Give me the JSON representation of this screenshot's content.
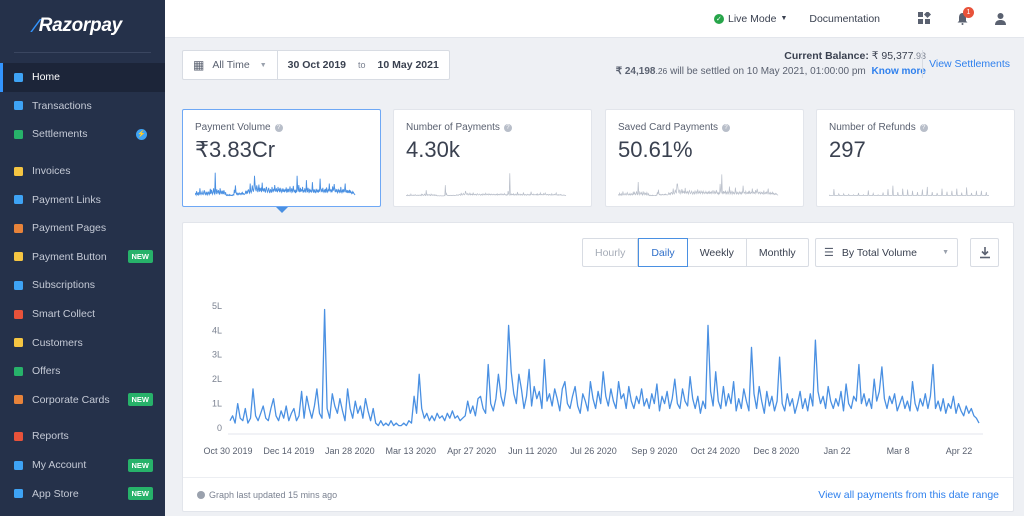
{
  "brand": {
    "name": "Razorpay"
  },
  "sidebar": {
    "items": [
      {
        "label": "Home",
        "icon": "home-icon",
        "color": "#3ea3f5",
        "active": true
      },
      {
        "label": "Transactions",
        "icon": "transactions-icon",
        "color": "#3ea3f5"
      },
      {
        "label": "Settlements",
        "icon": "settlements-icon",
        "color": "#27b26a",
        "badge": "bolt"
      },
      {
        "label": "Invoices",
        "icon": "invoices-icon",
        "color": "#f5c542"
      },
      {
        "label": "Payment Links",
        "icon": "link-icon",
        "color": "#3ea3f5"
      },
      {
        "label": "Payment Pages",
        "icon": "pages-icon",
        "color": "#e8833a"
      },
      {
        "label": "Payment Button",
        "icon": "button-icon",
        "color": "#f5c542",
        "badge": "NEW"
      },
      {
        "label": "Subscriptions",
        "icon": "subscriptions-icon",
        "color": "#3ea3f5"
      },
      {
        "label": "Smart Collect",
        "icon": "bank-icon",
        "color": "#e8523a"
      },
      {
        "label": "Customers",
        "icon": "customers-icon",
        "color": "#f5c542"
      },
      {
        "label": "Offers",
        "icon": "tag-icon",
        "color": "#27b26a"
      },
      {
        "label": "Corporate Cards",
        "icon": "card-icon",
        "color": "#e8833a",
        "badge": "NEW"
      },
      {
        "label": "Reports",
        "icon": "reports-icon",
        "color": "#e8523a"
      },
      {
        "label": "My Account",
        "icon": "account-icon",
        "color": "#3ea3f5",
        "badge": "NEW"
      },
      {
        "label": "App Store",
        "icon": "grid-icon",
        "color": "#3ea3f5",
        "badge": "NEW"
      }
    ]
  },
  "topbar": {
    "mode": "Live Mode",
    "documentation": "Documentation",
    "notif_count": "1"
  },
  "date_filter": {
    "range": "All Time",
    "from": "30 Oct 2019",
    "to_word": "to",
    "to": "10 May 2021"
  },
  "balance": {
    "label": "Current Balance:",
    "amount": "₹ 95,377",
    "amount_decimal": ".93",
    "settle_amount": "₹ 24,198",
    "settle_decimal": ".26",
    "settle_text": "will be settled on 10 May 2021, 01:00:00 pm",
    "know_more": "Know more",
    "view_settlements": "View Settlements"
  },
  "cards": [
    {
      "label": "Payment Volume",
      "value": "₹3.83Cr"
    },
    {
      "label": "Number of Payments",
      "value": "4.30k"
    },
    {
      "label": "Saved Card Payments",
      "value": "50.61%"
    },
    {
      "label": "Number of Refunds",
      "value": "297"
    }
  ],
  "controls": {
    "granularity": [
      "Hourly",
      "Daily",
      "Weekly",
      "Monthly"
    ],
    "selected": "Daily",
    "sort": "By Total Volume"
  },
  "footer": {
    "updated": "Graph last updated 15 mins ago",
    "view_all": "View all payments from this date range"
  },
  "chart_data": {
    "type": "line",
    "ylabel": "",
    "yticks": [
      "0",
      "1L",
      "2L",
      "3L",
      "4L",
      "5L"
    ],
    "ylim": [
      0,
      5.2
    ],
    "xticks": [
      "Oct 30 2019",
      "Dec 14 2019",
      "Jan 28 2020",
      "Mar 13 2020",
      "Apr 27 2020",
      "Jun 11 2020",
      "Jul 26 2020",
      "Sep 9 2020",
      "Oct 24 2020",
      "Dec 8 2020",
      "Jan 22",
      "Mar 8",
      "Apr 22"
    ],
    "series": [
      {
        "color": "#4a90e2",
        "values": [
          0.3,
          0.5,
          0.2,
          1.0,
          0.4,
          0.3,
          0.8,
          0.2,
          0.4,
          1.6,
          0.5,
          0.3,
          0.6,
          0.9,
          0.4,
          0.3,
          0.8,
          1.2,
          0.5,
          0.3,
          0.7,
          0.4,
          0.9,
          0.3,
          0.6,
          0.8,
          0.3,
          0.5,
          1.5,
          0.4,
          1.3,
          0.8,
          0.4,
          0.9,
          1.6,
          0.6,
          0.4,
          4.85,
          0.8,
          0.4,
          1.4,
          0.9,
          0.6,
          1.2,
          0.7,
          0.3,
          1.6,
          0.8,
          0.4,
          1.1,
          0.6,
          0.9,
          0.4,
          1.2,
          0.7,
          0.3,
          0.8,
          0.2,
          0.1,
          0.3,
          0.1,
          0.2,
          0.1,
          0.3,
          0.1,
          0.2,
          0.1,
          0.1,
          0.2,
          0.1,
          0.3,
          0.2,
          1.3,
          0.6,
          2.2,
          0.8,
          0.4,
          0.6,
          0.3,
          0.5,
          0.3,
          0.6,
          0.4,
          0.5,
          0.3,
          0.6,
          0.4,
          0.7,
          0.4,
          0.5,
          0.3,
          0.4,
          0.5,
          1.1,
          0.6,
          0.9,
          0.5,
          1.2,
          1.3,
          0.8,
          0.6,
          2.6,
          1.0,
          0.7,
          1.2,
          2.2,
          1.3,
          0.9,
          1.6,
          4.2,
          2.3,
          1.4,
          1.0,
          2.2,
          1.6,
          0.8,
          1.3,
          2.4,
          0.9,
          1.7,
          1.2,
          1.5,
          0.8,
          2.8,
          1.1,
          1.4,
          0.9,
          1.6,
          1.2,
          0.7,
          1.6,
          1.9,
          1.0,
          0.8,
          1.3,
          1.7,
          0.9,
          0.6,
          1.4,
          1.1,
          0.7,
          1.9,
          1.2,
          0.8,
          1.5,
          1.0,
          2.3,
          1.3,
          0.9,
          1.6,
          1.1,
          0.8,
          1.9,
          1.2,
          1.4,
          0.8,
          1.7,
          1.1,
          0.8,
          1.3,
          1.0,
          1.6,
          0.9,
          1.2,
          0.8,
          1.4,
          1.0,
          1.8,
          0.7,
          1.3,
          1.0,
          1.5,
          0.8,
          1.2,
          2.0,
          1.0,
          0.8,
          1.6,
          1.1,
          0.9,
          2.1,
          1.2,
          0.8,
          1.3,
          0.6,
          1.1,
          0.8,
          4.2,
          1.5,
          0.9,
          2.3,
          1.1,
          0.8,
          1.7,
          0.9,
          1.4,
          1.0,
          1.9,
          0.7,
          1.2,
          0.8,
          1.6,
          1.1,
          0.7,
          3.3,
          1.4,
          0.8,
          1.7,
          1.1,
          0.6,
          1.5,
          0.9,
          1.3,
          0.7,
          1.1,
          2.9,
          1.0,
          0.7,
          1.4,
          0.9,
          1.2,
          0.6,
          1.0,
          1.5,
          0.8,
          1.2,
          0.7,
          1.4,
          0.9,
          3.6,
          1.5,
          1.0,
          1.3,
          0.8,
          1.7,
          1.1,
          0.8,
          1.2,
          0.9,
          1.5,
          0.7,
          1.8,
          1.0,
          0.8,
          1.3,
          1.1,
          2.6,
          1.0,
          1.4,
          0.9,
          1.2,
          0.8,
          2.0,
          1.1,
          1.5,
          2.5,
          1.2,
          0.8,
          1.3,
          1.0,
          1.4,
          0.7,
          1.0,
          1.3,
          0.8,
          1.1,
          0.7,
          1.9,
          1.0,
          0.7,
          1.2,
          0.9,
          1.4,
          0.8,
          1.3,
          2.6,
          0.8,
          1.1,
          0.7,
          1.2,
          0.6,
          1.0,
          0.8,
          1.3,
          0.6,
          1.0,
          0.7,
          0.5,
          0.9,
          0.6,
          0.8,
          0.5,
          0.4,
          0.2
        ]
      }
    ]
  }
}
